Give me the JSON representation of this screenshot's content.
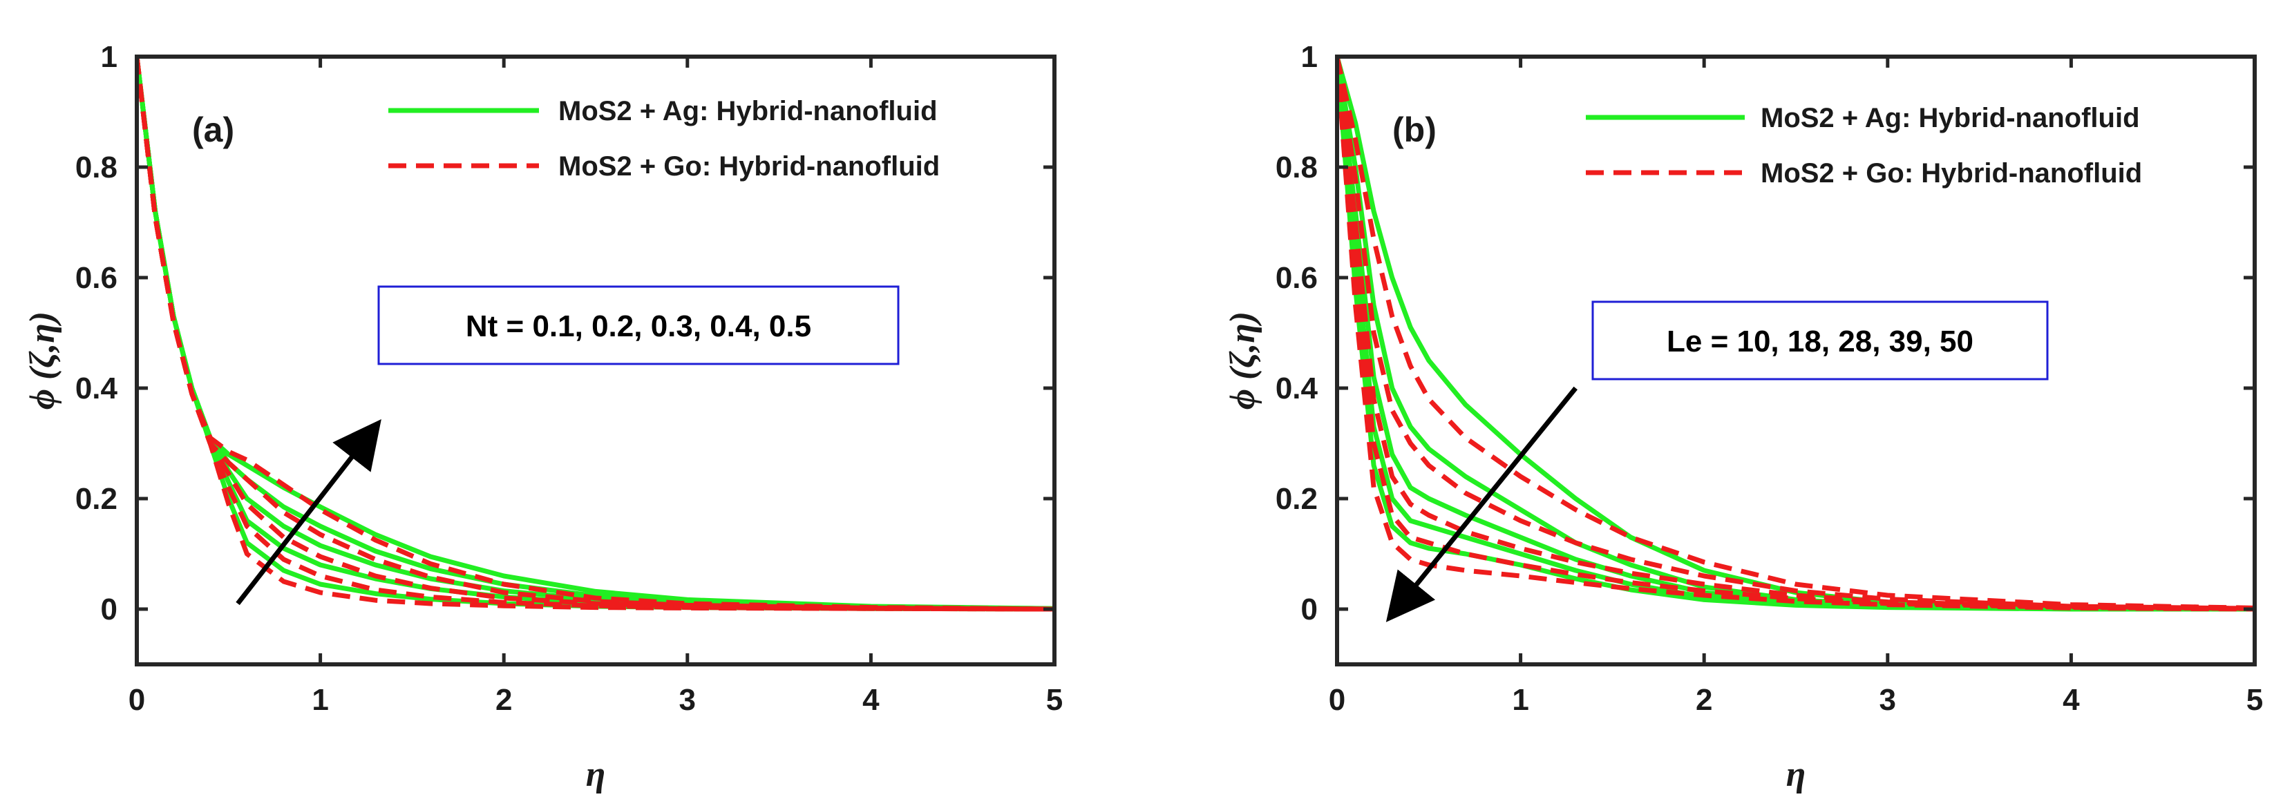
{
  "colors": {
    "ag": "#22ee22",
    "go": "#ee1c1c",
    "axis": "#262626",
    "annotation_box": "#1f1fd6"
  },
  "chart_data": [
    {
      "type": "line",
      "panel_label": "(a)",
      "xlabel": "η",
      "ylabel": "ϕ (ζ,η)",
      "xlim": [
        0,
        5
      ],
      "ylim": [
        -0.1,
        1
      ],
      "xticks": [
        0,
        1,
        2,
        3,
        4,
        5
      ],
      "yticks": [
        0,
        0.2,
        0.4,
        0.6,
        0.8,
        1
      ],
      "x_tick_labels": [
        "0",
        "1",
        "2",
        "3",
        "4",
        "5"
      ],
      "y_tick_labels": [
        "0",
        "0.2",
        "0.4",
        "0.6",
        "0.8",
        "1"
      ],
      "legend": [
        "MoS2 + Ag: Hybrid-nanofluid",
        "MoS2 + Go: Hybrid-nanofluid"
      ],
      "annotation": "Nt = 0.1, 0.2, 0.3, 0.4, 0.5",
      "arrow": {
        "from": [
          0.55,
          0.01
        ],
        "to": [
          1.3,
          0.33
        ]
      },
      "series": [
        {
          "name": "MoS2 + Ag: Hybrid-nanofluid",
          "param": "Nt = 0.1",
          "x": [
            0,
            0.1,
            0.2,
            0.3,
            0.4,
            0.5,
            0.6,
            0.8,
            1.0,
            1.3,
            1.6,
            2.0,
            2.5,
            3.0,
            4.0,
            5.0
          ],
          "y": [
            1.0,
            0.72,
            0.53,
            0.4,
            0.3,
            0.2,
            0.12,
            0.07,
            0.045,
            0.028,
            0.018,
            0.01,
            0.005,
            0.003,
            0.001,
            0.0
          ]
        },
        {
          "name": "MoS2 + Ag: Hybrid-nanofluid",
          "param": "Nt = 0.2",
          "x": [
            0,
            0.1,
            0.2,
            0.3,
            0.4,
            0.5,
            0.6,
            0.8,
            1.0,
            1.3,
            1.6,
            2.0,
            2.5,
            3.0,
            4.0,
            5.0
          ],
          "y": [
            1.0,
            0.72,
            0.53,
            0.4,
            0.31,
            0.23,
            0.16,
            0.11,
            0.08,
            0.055,
            0.037,
            0.022,
            0.011,
            0.006,
            0.002,
            0.0
          ]
        },
        {
          "name": "MoS2 + Ag: Hybrid-nanofluid",
          "param": "Nt = 0.3",
          "x": [
            0,
            0.1,
            0.2,
            0.3,
            0.4,
            0.5,
            0.6,
            0.8,
            1.0,
            1.3,
            1.6,
            2.0,
            2.5,
            3.0,
            4.0,
            5.0
          ],
          "y": [
            1.0,
            0.72,
            0.53,
            0.4,
            0.31,
            0.25,
            0.2,
            0.15,
            0.115,
            0.08,
            0.055,
            0.033,
            0.017,
            0.009,
            0.003,
            0.0
          ]
        },
        {
          "name": "MoS2 + Ag: Hybrid-nanofluid",
          "param": "Nt = 0.4",
          "x": [
            0,
            0.1,
            0.2,
            0.3,
            0.4,
            0.5,
            0.6,
            0.8,
            1.0,
            1.3,
            1.6,
            2.0,
            2.5,
            3.0,
            4.0,
            5.0
          ],
          "y": [
            1.0,
            0.72,
            0.53,
            0.4,
            0.31,
            0.265,
            0.235,
            0.185,
            0.15,
            0.105,
            0.073,
            0.045,
            0.024,
            0.013,
            0.004,
            0.001
          ]
        },
        {
          "name": "MoS2 + Ag: Hybrid-nanofluid",
          "param": "Nt = 0.5",
          "x": [
            0,
            0.1,
            0.2,
            0.3,
            0.4,
            0.5,
            0.6,
            0.8,
            1.0,
            1.3,
            1.6,
            2.0,
            2.5,
            3.0,
            4.0,
            5.0
          ],
          "y": [
            1.0,
            0.72,
            0.53,
            0.4,
            0.31,
            0.28,
            0.26,
            0.22,
            0.185,
            0.135,
            0.095,
            0.06,
            0.032,
            0.017,
            0.005,
            0.001
          ]
        },
        {
          "name": "MoS2 + Go: Hybrid-nanofluid",
          "param": "Nt = 0.1",
          "x": [
            0,
            0.1,
            0.2,
            0.3,
            0.4,
            0.5,
            0.6,
            0.8,
            1.0,
            1.3,
            1.6,
            2.0,
            2.5,
            3.0,
            4.0,
            5.0
          ],
          "y": [
            1.0,
            0.71,
            0.52,
            0.39,
            0.3,
            0.19,
            0.1,
            0.05,
            0.03,
            0.016,
            0.01,
            0.006,
            0.003,
            0.002,
            0.001,
            0.0
          ]
        },
        {
          "name": "MoS2 + Go: Hybrid-nanofluid",
          "param": "Nt = 0.2",
          "x": [
            0,
            0.1,
            0.2,
            0.3,
            0.4,
            0.5,
            0.6,
            0.8,
            1.0,
            1.3,
            1.6,
            2.0,
            2.5,
            3.0,
            4.0,
            5.0
          ],
          "y": [
            1.0,
            0.71,
            0.52,
            0.39,
            0.3,
            0.22,
            0.15,
            0.09,
            0.06,
            0.035,
            0.022,
            0.012,
            0.006,
            0.003,
            0.001,
            0.0
          ]
        },
        {
          "name": "MoS2 + Go: Hybrid-nanofluid",
          "param": "Nt = 0.3",
          "x": [
            0,
            0.1,
            0.2,
            0.3,
            0.4,
            0.5,
            0.6,
            0.8,
            1.0,
            1.3,
            1.6,
            2.0,
            2.5,
            3.0,
            4.0,
            5.0
          ],
          "y": [
            1.0,
            0.71,
            0.52,
            0.39,
            0.3,
            0.245,
            0.19,
            0.13,
            0.095,
            0.06,
            0.038,
            0.02,
            0.01,
            0.005,
            0.002,
            0.0
          ]
        },
        {
          "name": "MoS2 + Go: Hybrid-nanofluid",
          "param": "Nt = 0.4",
          "x": [
            0,
            0.1,
            0.2,
            0.3,
            0.4,
            0.5,
            0.6,
            0.8,
            1.0,
            1.3,
            1.6,
            2.0,
            2.5,
            3.0,
            4.0,
            5.0
          ],
          "y": [
            1.0,
            0.71,
            0.52,
            0.39,
            0.3,
            0.265,
            0.235,
            0.175,
            0.135,
            0.09,
            0.058,
            0.03,
            0.014,
            0.007,
            0.002,
            0.0
          ]
        },
        {
          "name": "MoS2 + Go: Hybrid-nanofluid",
          "param": "Nt = 0.5",
          "x": [
            0,
            0.1,
            0.2,
            0.3,
            0.4,
            0.5,
            0.6,
            0.8,
            1.0,
            1.3,
            1.6,
            2.0,
            2.5,
            3.0,
            4.0,
            5.0
          ],
          "y": [
            1.0,
            0.71,
            0.52,
            0.39,
            0.31,
            0.285,
            0.27,
            0.225,
            0.18,
            0.125,
            0.082,
            0.045,
            0.02,
            0.01,
            0.003,
            0.0
          ]
        }
      ]
    },
    {
      "type": "line",
      "panel_label": "(b)",
      "xlabel": "η",
      "ylabel": "ϕ (ζ,η)",
      "xlim": [
        0,
        5
      ],
      "ylim": [
        -0.1,
        1
      ],
      "xticks": [
        0,
        1,
        2,
        3,
        4,
        5
      ],
      "yticks": [
        0,
        0.2,
        0.4,
        0.6,
        0.8,
        1
      ],
      "x_tick_labels": [
        "0",
        "1",
        "2",
        "3",
        "4",
        "5"
      ],
      "y_tick_labels": [
        "0",
        "0.2",
        "0.4",
        "0.6",
        "0.8",
        "1"
      ],
      "legend": [
        "MoS2 + Ag: Hybrid-nanofluid",
        "MoS2 + Go: Hybrid-nanofluid"
      ],
      "annotation": "Le = 10, 18, 28, 39, 50",
      "arrow": {
        "from": [
          1.3,
          0.4
        ],
        "to": [
          0.3,
          -0.01
        ]
      },
      "series": [
        {
          "name": "MoS2 + Ag: Hybrid-nanofluid",
          "param": "Le = 10",
          "x": [
            0,
            0.1,
            0.2,
            0.3,
            0.4,
            0.5,
            0.7,
            1.0,
            1.3,
            1.6,
            2.0,
            2.5,
            3.0,
            4.0,
            5.0
          ],
          "y": [
            1.0,
            0.88,
            0.72,
            0.6,
            0.51,
            0.45,
            0.37,
            0.28,
            0.2,
            0.13,
            0.07,
            0.03,
            0.012,
            0.002,
            0.0
          ]
        },
        {
          "name": "MoS2 + Ag: Hybrid-nanofluid",
          "param": "Le = 18",
          "x": [
            0,
            0.1,
            0.2,
            0.3,
            0.4,
            0.5,
            0.7,
            1.0,
            1.3,
            1.6,
            2.0,
            2.5,
            3.0,
            4.0,
            5.0
          ],
          "y": [
            1.0,
            0.8,
            0.55,
            0.4,
            0.33,
            0.29,
            0.24,
            0.18,
            0.12,
            0.08,
            0.04,
            0.017,
            0.007,
            0.001,
            0.0
          ]
        },
        {
          "name": "MoS2 + Ag: Hybrid-nanofluid",
          "param": "Le = 28",
          "x": [
            0,
            0.1,
            0.2,
            0.3,
            0.4,
            0.5,
            0.7,
            1.0,
            1.3,
            1.6,
            2.0,
            2.5,
            3.0,
            4.0,
            5.0
          ],
          "y": [
            1.0,
            0.72,
            0.42,
            0.28,
            0.22,
            0.2,
            0.17,
            0.13,
            0.09,
            0.06,
            0.03,
            0.012,
            0.005,
            0.001,
            0.0
          ]
        },
        {
          "name": "MoS2 + Ag: Hybrid-nanofluid",
          "param": "Le = 39",
          "x": [
            0,
            0.1,
            0.2,
            0.3,
            0.4,
            0.5,
            0.7,
            1.0,
            1.3,
            1.6,
            2.0,
            2.5,
            3.0,
            4.0,
            5.0
          ],
          "y": [
            1.0,
            0.65,
            0.33,
            0.2,
            0.16,
            0.15,
            0.13,
            0.1,
            0.07,
            0.045,
            0.022,
            0.009,
            0.004,
            0.001,
            0.0
          ]
        },
        {
          "name": "MoS2 + Ag: Hybrid-nanofluid",
          "param": "Le = 50",
          "x": [
            0,
            0.1,
            0.2,
            0.3,
            0.4,
            0.5,
            0.7,
            1.0,
            1.3,
            1.6,
            2.0,
            2.5,
            3.0,
            4.0,
            5.0
          ],
          "y": [
            1.0,
            0.58,
            0.26,
            0.15,
            0.12,
            0.11,
            0.1,
            0.08,
            0.055,
            0.035,
            0.017,
            0.007,
            0.003,
            0.0,
            0.0
          ]
        },
        {
          "name": "MoS2 + Go: Hybrid-nanofluid",
          "param": "Le = 10",
          "x": [
            0,
            0.1,
            0.2,
            0.3,
            0.4,
            0.5,
            0.7,
            1.0,
            1.3,
            1.6,
            2.0,
            2.5,
            3.0,
            4.0,
            5.0
          ],
          "y": [
            1.0,
            0.85,
            0.67,
            0.53,
            0.44,
            0.38,
            0.31,
            0.24,
            0.18,
            0.13,
            0.085,
            0.045,
            0.025,
            0.008,
            0.002
          ]
        },
        {
          "name": "MoS2 + Go: Hybrid-nanofluid",
          "param": "Le = 18",
          "x": [
            0,
            0.1,
            0.2,
            0.3,
            0.4,
            0.5,
            0.7,
            1.0,
            1.3,
            1.6,
            2.0,
            2.5,
            3.0,
            4.0,
            5.0
          ],
          "y": [
            1.0,
            0.78,
            0.5,
            0.36,
            0.3,
            0.26,
            0.21,
            0.16,
            0.12,
            0.09,
            0.06,
            0.033,
            0.018,
            0.005,
            0.001
          ]
        },
        {
          "name": "MoS2 + Go: Hybrid-nanofluid",
          "param": "Le = 28",
          "x": [
            0,
            0.1,
            0.2,
            0.3,
            0.4,
            0.5,
            0.7,
            1.0,
            1.3,
            1.6,
            2.0,
            2.5,
            3.0,
            4.0,
            5.0
          ],
          "y": [
            1.0,
            0.7,
            0.38,
            0.24,
            0.19,
            0.17,
            0.14,
            0.11,
            0.085,
            0.065,
            0.045,
            0.025,
            0.013,
            0.004,
            0.001
          ]
        },
        {
          "name": "MoS2 + Go: Hybrid-nanofluid",
          "param": "Le = 39",
          "x": [
            0,
            0.1,
            0.2,
            0.3,
            0.4,
            0.5,
            0.7,
            1.0,
            1.3,
            1.6,
            2.0,
            2.5,
            3.0,
            4.0,
            5.0
          ],
          "y": [
            1.0,
            0.62,
            0.3,
            0.17,
            0.13,
            0.12,
            0.1,
            0.08,
            0.063,
            0.048,
            0.033,
            0.019,
            0.01,
            0.003,
            0.001
          ]
        },
        {
          "name": "MoS2 + Go: Hybrid-nanofluid",
          "param": "Le = 50",
          "x": [
            0,
            0.1,
            0.2,
            0.3,
            0.4,
            0.5,
            0.7,
            1.0,
            1.3,
            1.6,
            2.0,
            2.5,
            3.0,
            4.0,
            5.0
          ],
          "y": [
            1.0,
            0.55,
            0.22,
            0.12,
            0.09,
            0.08,
            0.07,
            0.06,
            0.048,
            0.037,
            0.025,
            0.014,
            0.008,
            0.002,
            0.0
          ]
        }
      ]
    }
  ]
}
